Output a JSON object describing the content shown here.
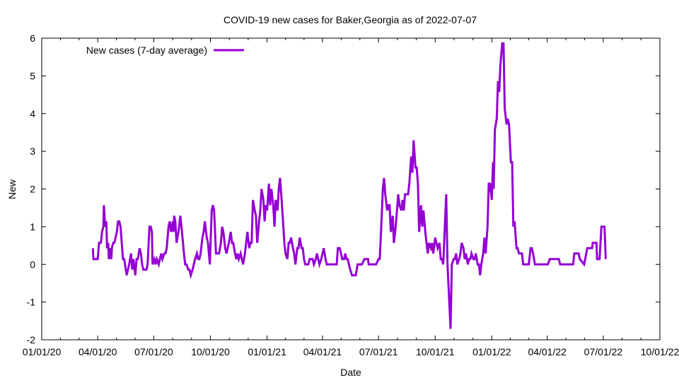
{
  "chart_data": {
    "type": "line",
    "title": "COVID-19 new cases for Baker,Georgia as of 2022-07-07",
    "xlabel": "Date",
    "ylabel": "New",
    "x_units": "days since 2020-01-01",
    "xlim": [
      0,
      1004
    ],
    "ylim": [
      -2,
      6
    ],
    "x_ticks": [
      {
        "day": 0,
        "label": "01/01/20"
      },
      {
        "day": 91,
        "label": "04/01/20"
      },
      {
        "day": 182,
        "label": "07/01/20"
      },
      {
        "day": 274,
        "label": "10/01/20"
      },
      {
        "day": 366,
        "label": "01/01/21"
      },
      {
        "day": 456,
        "label": "04/01/21"
      },
      {
        "day": 547,
        "label": "07/01/21"
      },
      {
        "day": 639,
        "label": "10/01/21"
      },
      {
        "day": 731,
        "label": "01/01/22"
      },
      {
        "day": 821,
        "label": "04/01/22"
      },
      {
        "day": 912,
        "label": "07/01/22"
      },
      {
        "day": 1004,
        "label": "10/01/22"
      }
    ],
    "y_ticks": [
      "-2",
      "-1",
      "0",
      "1",
      "2",
      "3",
      "4",
      "5",
      "6"
    ],
    "legend": {
      "placement": "top-left",
      "entries": [
        "New cases (7-day average)"
      ]
    },
    "series": [
      {
        "name": "New cases (7-day average)",
        "color": "#9400d3",
        "points": [
          [
            83,
            0.43
          ],
          [
            84,
            0.14
          ],
          [
            91,
            0.14
          ],
          [
            93,
            0.57
          ],
          [
            96,
            0.57
          ],
          [
            98,
            0.86
          ],
          [
            100,
            1.0
          ],
          [
            101,
            1.57
          ],
          [
            103,
            1.0
          ],
          [
            105,
            1.14
          ],
          [
            106,
            0.43
          ],
          [
            108,
            0.57
          ],
          [
            109,
            0.14
          ],
          [
            111,
            0.43
          ],
          [
            113,
            0.14
          ],
          [
            114,
            0.43
          ],
          [
            116,
            0.57
          ],
          [
            118,
            0.57
          ],
          [
            122,
            0.86
          ],
          [
            124,
            1.14
          ],
          [
            126,
            1.14
          ],
          [
            128,
            1.0
          ],
          [
            132,
            0.14
          ],
          [
            134,
            0.14
          ],
          [
            138,
            -0.29
          ],
          [
            140,
            -0.14
          ],
          [
            142,
            0.0
          ],
          [
            145,
            0.29
          ],
          [
            147,
            -0.14
          ],
          [
            149,
            0.14
          ],
          [
            152,
            -0.29
          ],
          [
            154,
            0.14
          ],
          [
            156,
            0.14
          ],
          [
            159,
            0.43
          ],
          [
            161,
            0.29
          ],
          [
            163,
            0.0
          ],
          [
            165,
            -0.14
          ],
          [
            168,
            -0.14
          ],
          [
            170,
            -0.14
          ],
          [
            172,
            0.0
          ],
          [
            175,
            1.0
          ],
          [
            177,
            1.0
          ],
          [
            179,
            0.86
          ],
          [
            180,
            0.0
          ],
          [
            183,
            0.14
          ],
          [
            185,
            0.0
          ],
          [
            187,
            0.14
          ],
          [
            190,
            0.0
          ],
          [
            192,
            0.14
          ],
          [
            194,
            0.29
          ],
          [
            196,
            0.14
          ],
          [
            199,
            0.29
          ],
          [
            201,
            0.29
          ],
          [
            203,
            0.43
          ],
          [
            206,
            1.0
          ],
          [
            208,
            1.14
          ],
          [
            210,
            0.86
          ],
          [
            213,
            1.14
          ],
          [
            214,
            0.86
          ],
          [
            215,
            1.29
          ],
          [
            217,
            1.14
          ],
          [
            219,
            0.57
          ],
          [
            222,
            0.86
          ],
          [
            225,
            1.29
          ],
          [
            227,
            1.0
          ],
          [
            231,
            0.29
          ],
          [
            233,
            0.0
          ],
          [
            235,
            0.0
          ],
          [
            238,
            -0.14
          ],
          [
            240,
            -0.14
          ],
          [
            242,
            -0.29
          ],
          [
            245,
            -0.14
          ],
          [
            247,
            0.0
          ],
          [
            249,
            0.14
          ],
          [
            252,
            0.29
          ],
          [
            254,
            0.14
          ],
          [
            256,
            0.14
          ],
          [
            258,
            0.29
          ],
          [
            261,
            0.71
          ],
          [
            263,
            0.86
          ],
          [
            265,
            1.14
          ],
          [
            268,
            0.71
          ],
          [
            270,
            0.57
          ],
          [
            273,
            0.0
          ],
          [
            276,
            1.43
          ],
          [
            278,
            1.57
          ],
          [
            280,
            1.43
          ],
          [
            283,
            0.29
          ],
          [
            285,
            0.29
          ],
          [
            288,
            0.29
          ],
          [
            291,
            0.57
          ],
          [
            293,
            1.0
          ],
          [
            295,
            0.86
          ],
          [
            298,
            0.43
          ],
          [
            300,
            0.29
          ],
          [
            302,
            0.43
          ],
          [
            304,
            0.57
          ],
          [
            307,
            0.86
          ],
          [
            309,
            0.57
          ],
          [
            311,
            0.57
          ],
          [
            314,
            0.29
          ],
          [
            316,
            0.14
          ],
          [
            318,
            0.29
          ],
          [
            320,
            0.14
          ],
          [
            323,
            0.29
          ],
          [
            325,
            0.14
          ],
          [
            327,
            0.0
          ],
          [
            330,
            0.29
          ],
          [
            332,
            0.57
          ],
          [
            334,
            0.86
          ],
          [
            337,
            0.43
          ],
          [
            339,
            0.57
          ],
          [
            341,
            0.57
          ],
          [
            343,
            1.71
          ],
          [
            346,
            1.43
          ],
          [
            348,
            1.29
          ],
          [
            350,
            0.57
          ],
          [
            353,
            1.14
          ],
          [
            355,
            1.43
          ],
          [
            357,
            2.0
          ],
          [
            360,
            1.71
          ],
          [
            362,
            1.14
          ],
          [
            364,
            1.57
          ],
          [
            366,
            1.43
          ],
          [
            369,
            2.14
          ],
          [
            371,
            1.57
          ],
          [
            373,
            2.0
          ],
          [
            376,
            1.57
          ],
          [
            378,
            1.0
          ],
          [
            380,
            1.71
          ],
          [
            383,
            1.43
          ],
          [
            385,
            2.0
          ],
          [
            387,
            2.29
          ],
          [
            389,
            1.86
          ],
          [
            392,
            1.14
          ],
          [
            394,
            0.57
          ],
          [
            396,
            0.29
          ],
          [
            399,
            0.14
          ],
          [
            401,
            0.57
          ],
          [
            403,
            0.57
          ],
          [
            405,
            0.71
          ],
          [
            408,
            0.43
          ],
          [
            410,
            0.29
          ],
          [
            412,
            0.0
          ],
          [
            415,
            0.43
          ],
          [
            417,
            0.43
          ],
          [
            419,
            0.71
          ],
          [
            422,
            0.43
          ],
          [
            424,
            0.43
          ],
          [
            426,
            0.14
          ],
          [
            428,
            0.0
          ],
          [
            433,
            0.0
          ],
          [
            435,
            0.14
          ],
          [
            440,
            0.14
          ],
          [
            442,
            0.0
          ],
          [
            445,
            0.14
          ],
          [
            447,
            0.29
          ],
          [
            449,
            0.14
          ],
          [
            451,
            0.0
          ],
          [
            454,
            0.14
          ],
          [
            456,
            0.29
          ],
          [
            458,
            0.43
          ],
          [
            461,
            0.14
          ],
          [
            463,
            0.0
          ],
          [
            479,
            0.0
          ],
          [
            481,
            0.43
          ],
          [
            484,
            0.43
          ],
          [
            486,
            0.29
          ],
          [
            488,
            0.14
          ],
          [
            491,
            0.14
          ],
          [
            493,
            0.29
          ],
          [
            495,
            0.14
          ],
          [
            497,
            0.14
          ],
          [
            501,
            -0.14
          ],
          [
            504,
            -0.29
          ],
          [
            510,
            -0.29
          ],
          [
            513,
            0.0
          ],
          [
            520,
            0.0
          ],
          [
            524,
            0.14
          ],
          [
            530,
            0.14
          ],
          [
            531,
            0.0
          ],
          [
            543,
            0.0
          ],
          [
            547,
            0.14
          ],
          [
            549,
            0.14
          ],
          [
            551,
            0.86
          ],
          [
            554,
            2.0
          ],
          [
            556,
            2.29
          ],
          [
            558,
            1.86
          ],
          [
            561,
            1.43
          ],
          [
            563,
            1.57
          ],
          [
            565,
            1.57
          ],
          [
            567,
            0.86
          ],
          [
            570,
            1.29
          ],
          [
            572,
            0.57
          ],
          [
            574,
            0.86
          ],
          [
            577,
            1.43
          ],
          [
            579,
            1.86
          ],
          [
            581,
            1.57
          ],
          [
            584,
            1.43
          ],
          [
            586,
            1.71
          ],
          [
            588,
            1.43
          ],
          [
            590,
            1.86
          ],
          [
            595,
            1.86
          ],
          [
            597,
            2.14
          ],
          [
            600,
            2.86
          ],
          [
            602,
            2.43
          ],
          [
            604,
            3.29
          ],
          [
            607,
            2.57
          ],
          [
            609,
            2.57
          ],
          [
            611,
            2.14
          ],
          [
            613,
            0.86
          ],
          [
            616,
            1.57
          ],
          [
            618,
            1.0
          ],
          [
            620,
            1.43
          ],
          [
            623,
            0.86
          ],
          [
            625,
            0.57
          ],
          [
            627,
            0.29
          ],
          [
            629,
            0.57
          ],
          [
            632,
            0.43
          ],
          [
            634,
            0.57
          ],
          [
            636,
            0.29
          ],
          [
            639,
            0.71
          ],
          [
            641,
            0.57
          ],
          [
            643,
            0.43
          ],
          [
            646,
            0.57
          ],
          [
            648,
            0.14
          ],
          [
            650,
            0.14
          ],
          [
            652,
            0.0
          ],
          [
            657,
            1.86
          ],
          [
            659,
            0.0
          ],
          [
            664,
            -1.71
          ],
          [
            666,
            0.0
          ],
          [
            669,
            0.14
          ],
          [
            671,
            0.14
          ],
          [
            673,
            0.29
          ],
          [
            675,
            0.0
          ],
          [
            678,
            0.14
          ],
          [
            680,
            0.29
          ],
          [
            682,
            0.57
          ],
          [
            685,
            0.43
          ],
          [
            687,
            0.14
          ],
          [
            689,
            0.29
          ],
          [
            692,
            0.0
          ],
          [
            694,
            0.14
          ],
          [
            696,
            0.14
          ],
          [
            698,
            0.29
          ],
          [
            701,
            0.14
          ],
          [
            703,
            0.14
          ],
          [
            705,
            0.29
          ],
          [
            708,
            0.0
          ],
          [
            710,
            0.0
          ],
          [
            712,
            -0.29
          ],
          [
            714,
            0.0
          ],
          [
            717,
            0.29
          ],
          [
            719,
            0.71
          ],
          [
            721,
            0.29
          ],
          [
            724,
            1.0
          ],
          [
            726,
            2.14
          ],
          [
            728,
            2.14
          ],
          [
            731,
            1.71
          ],
          [
            733,
            2.71
          ],
          [
            734,
            2.0
          ],
          [
            736,
            3.57
          ],
          [
            739,
            3.86
          ],
          [
            741,
            4.86
          ],
          [
            743,
            4.57
          ],
          [
            745,
            5.29
          ],
          [
            748,
            5.86
          ],
          [
            750,
            5.86
          ],
          [
            752,
            4.14
          ],
          [
            755,
            3.71
          ],
          [
            757,
            3.86
          ],
          [
            759,
            3.71
          ],
          [
            762,
            2.71
          ],
          [
            764,
            2.71
          ],
          [
            766,
            1.0
          ],
          [
            768,
            1.14
          ],
          [
            771,
            0.43
          ],
          [
            773,
            0.43
          ],
          [
            775,
            0.29
          ],
          [
            778,
            0.29
          ],
          [
            780,
            0.29
          ],
          [
            782,
            0.0
          ],
          [
            791,
            0.0
          ],
          [
            794,
            0.43
          ],
          [
            796,
            0.43
          ],
          [
            798,
            0.29
          ],
          [
            801,
            0.0
          ],
          [
            822,
            0.0
          ],
          [
            825,
            0.14
          ],
          [
            840,
            0.14
          ],
          [
            842,
            0.0
          ],
          [
            863,
            0.0
          ],
          [
            865,
            0.29
          ],
          [
            872,
            0.29
          ],
          [
            874,
            0.14
          ],
          [
            881,
            0.0
          ],
          [
            886,
            0.43
          ],
          [
            894,
            0.43
          ],
          [
            895,
            0.57
          ],
          [
            901,
            0.57
          ],
          [
            902,
            0.14
          ],
          [
            906,
            0.14
          ],
          [
            909,
            1.0
          ],
          [
            914,
            1.0
          ],
          [
            916,
            0.14
          ]
        ]
      }
    ]
  }
}
